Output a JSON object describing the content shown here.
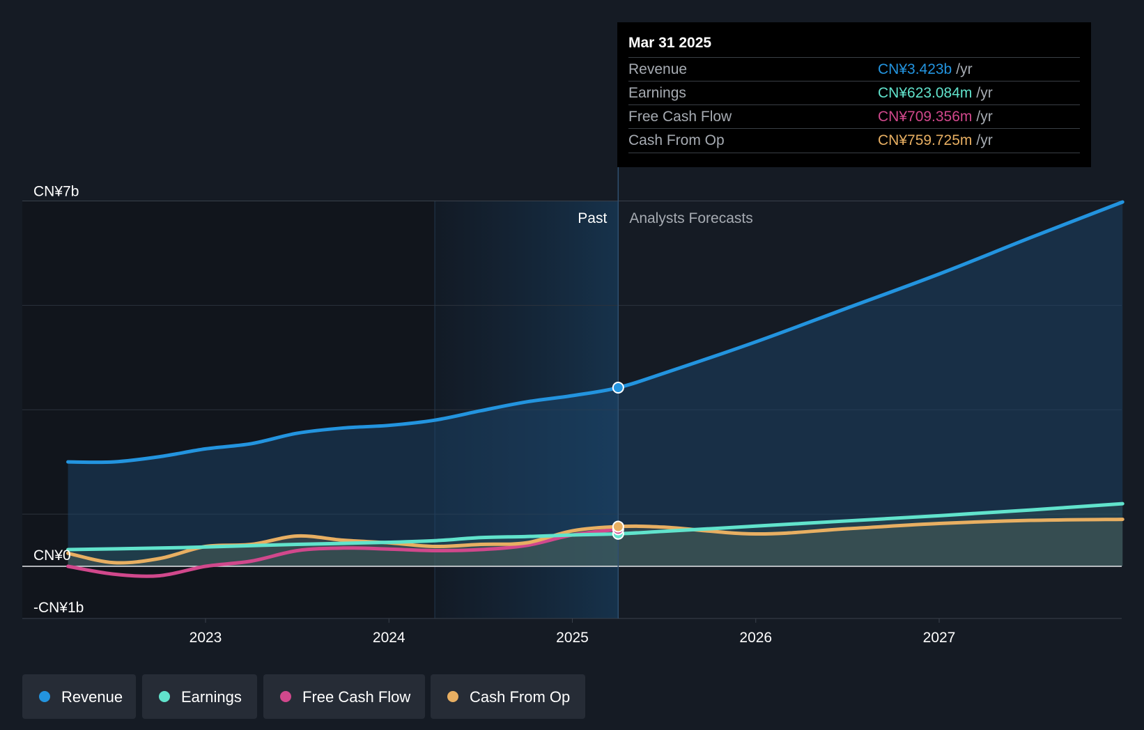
{
  "chart_data": {
    "type": "line",
    "x_ticks": [
      "2023",
      "2024",
      "2025",
      "2026",
      "2027"
    ],
    "y_ticks": [
      {
        "value": 7,
        "label": "CN¥7b"
      },
      {
        "value": 0,
        "label": "CN¥0"
      },
      {
        "value": -1,
        "label": "-CN¥1b"
      }
    ],
    "ylim": [
      -1,
      7
    ],
    "xlim": [
      2022.0,
      2028.0
    ],
    "gridlines": [
      5,
      3,
      1
    ],
    "past_label": "Past",
    "forecast_label": "Analysts Forecasts",
    "forecast_start": 2025.25,
    "series": [
      {
        "name": "Revenue",
        "color": "#2394df",
        "points": [
          [
            2022.25,
            2.0
          ],
          [
            2022.5,
            2.0
          ],
          [
            2022.75,
            2.1
          ],
          [
            2023.0,
            2.25
          ],
          [
            2023.25,
            2.35
          ],
          [
            2023.5,
            2.55
          ],
          [
            2023.75,
            2.65
          ],
          [
            2024.0,
            2.7
          ],
          [
            2024.25,
            2.8
          ],
          [
            2024.5,
            2.98
          ],
          [
            2024.75,
            3.15
          ],
          [
            2025.0,
            3.27
          ],
          [
            2025.25,
            3.423
          ],
          [
            2025.5,
            3.7
          ],
          [
            2026.0,
            4.3
          ],
          [
            2026.5,
            4.95
          ],
          [
            2027.0,
            5.6
          ],
          [
            2027.5,
            6.3
          ],
          [
            2028.0,
            6.98
          ]
        ]
      },
      {
        "name": "Earnings",
        "color": "#61e3cc",
        "points": [
          [
            2022.25,
            0.32
          ],
          [
            2022.75,
            0.35
          ],
          [
            2023.0,
            0.37
          ],
          [
            2023.5,
            0.42
          ],
          [
            2024.0,
            0.46
          ],
          [
            2024.25,
            0.49
          ],
          [
            2024.5,
            0.55
          ],
          [
            2024.75,
            0.57
          ],
          [
            2025.0,
            0.6
          ],
          [
            2025.25,
            0.623
          ],
          [
            2025.5,
            0.67
          ],
          [
            2026.0,
            0.77
          ],
          [
            2026.5,
            0.87
          ],
          [
            2027.0,
            0.97
          ],
          [
            2027.5,
            1.08
          ],
          [
            2028.0,
            1.2
          ]
        ]
      },
      {
        "name": "Free Cash Flow",
        "color": "#d1488c",
        "points": [
          [
            2022.25,
            0.0
          ],
          [
            2022.5,
            -0.15
          ],
          [
            2022.75,
            -0.18
          ],
          [
            2023.0,
            0.0
          ],
          [
            2023.25,
            0.1
          ],
          [
            2023.5,
            0.3
          ],
          [
            2023.75,
            0.35
          ],
          [
            2024.0,
            0.33
          ],
          [
            2024.25,
            0.3
          ],
          [
            2024.5,
            0.32
          ],
          [
            2024.75,
            0.4
          ],
          [
            2025.0,
            0.6
          ],
          [
            2025.25,
            0.709
          ]
        ]
      },
      {
        "name": "Cash From Op",
        "color": "#e8af62",
        "points": [
          [
            2022.25,
            0.25
          ],
          [
            2022.5,
            0.07
          ],
          [
            2022.75,
            0.15
          ],
          [
            2023.0,
            0.38
          ],
          [
            2023.25,
            0.42
          ],
          [
            2023.5,
            0.58
          ],
          [
            2023.75,
            0.5
          ],
          [
            2024.0,
            0.45
          ],
          [
            2024.25,
            0.38
          ],
          [
            2024.5,
            0.42
          ],
          [
            2024.75,
            0.45
          ],
          [
            2025.0,
            0.68
          ],
          [
            2025.25,
            0.76
          ],
          [
            2025.5,
            0.75
          ],
          [
            2026.0,
            0.62
          ],
          [
            2026.5,
            0.72
          ],
          [
            2027.0,
            0.82
          ],
          [
            2027.5,
            0.88
          ],
          [
            2028.0,
            0.9
          ]
        ]
      }
    ],
    "highlight_x": 2025.25
  },
  "tooltip": {
    "date": "Mar 31 2025",
    "rows": [
      {
        "label": "Revenue",
        "value": "CN¥3.423b",
        "unit": "/yr",
        "color": "#2394df"
      },
      {
        "label": "Earnings",
        "value": "CN¥623.084m",
        "unit": "/yr",
        "color": "#61e3cc"
      },
      {
        "label": "Free Cash Flow",
        "value": "CN¥709.356m",
        "unit": "/yr",
        "color": "#d1488c"
      },
      {
        "label": "Cash From Op",
        "value": "CN¥759.725m",
        "unit": "/yr",
        "color": "#e8af62"
      }
    ]
  },
  "legend": [
    {
      "label": "Revenue",
      "color": "#2394df"
    },
    {
      "label": "Earnings",
      "color": "#61e3cc"
    },
    {
      "label": "Free Cash Flow",
      "color": "#d1488c"
    },
    {
      "label": "Cash From Op",
      "color": "#e8af62"
    }
  ]
}
